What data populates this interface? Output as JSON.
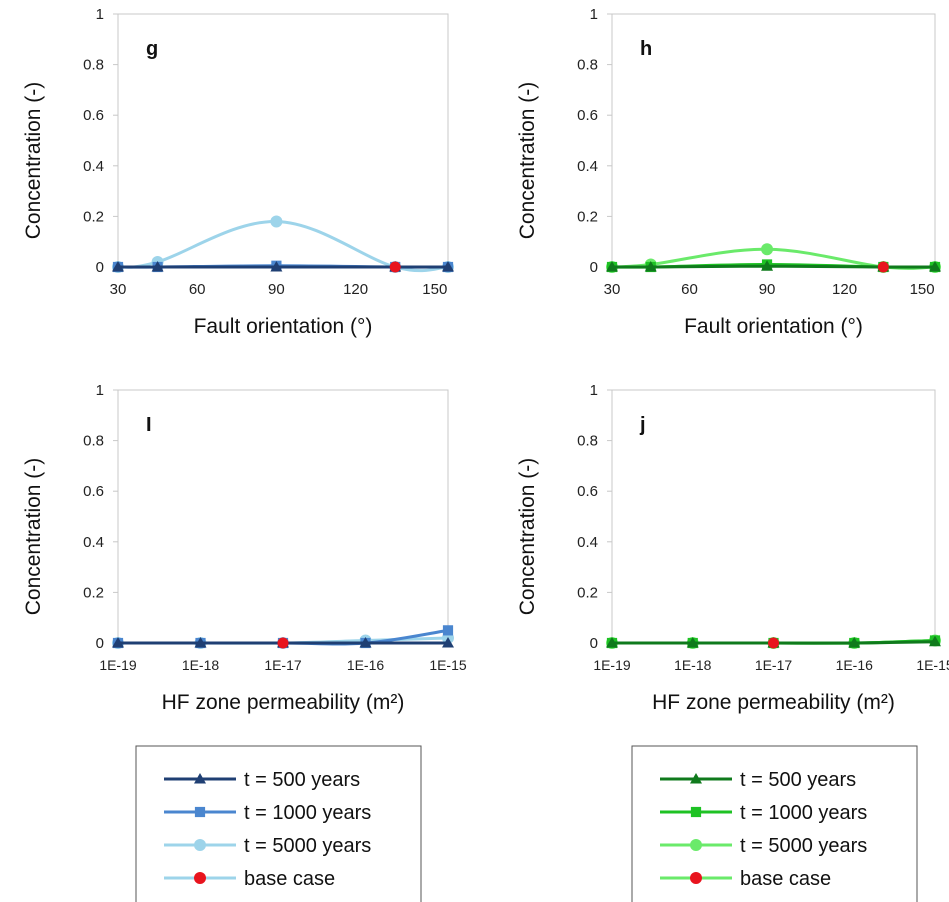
{
  "chart_data": [
    {
      "id": "g",
      "type": "line",
      "panel_label": "g",
      "xlabel": "Fault orientation (°)",
      "ylabel": "Concentration (-)",
      "xlim": [
        30,
        155
      ],
      "ylim": [
        0,
        1
      ],
      "x_ticks": [
        "30",
        "60",
        "90",
        "120",
        "150"
      ],
      "x_tick_values": [
        30,
        60,
        90,
        120,
        150
      ],
      "y_ticks": [
        "0",
        "0.2",
        "0.4",
        "0.6",
        "0.8",
        "1"
      ],
      "y_tick_values": [
        0,
        0.2,
        0.4,
        0.6,
        0.8,
        1
      ],
      "x": [
        30,
        45,
        90,
        135,
        155
      ],
      "series": [
        {
          "name": "t = 500 years",
          "marker": "triangle",
          "color": "#1f3f73",
          "values": [
            0,
            0,
            0,
            0,
            0
          ]
        },
        {
          "name": "t = 1000 years",
          "marker": "square",
          "color": "#4a86cf",
          "values": [
            0,
            0,
            0.005,
            0,
            0
          ]
        },
        {
          "name": "t = 5000 years",
          "marker": "circle",
          "color": "#9dd4ea",
          "values": [
            0,
            0.02,
            0.18,
            0,
            0
          ]
        },
        {
          "name": "base case",
          "marker": "circle",
          "color": "#e8141e",
          "x": [
            135
          ],
          "values": [
            0
          ]
        }
      ],
      "grid": false
    },
    {
      "id": "h",
      "type": "line",
      "panel_label": "h",
      "xlabel": "Fault orientation (°)",
      "ylabel": "Concentration (-)",
      "xlim": [
        30,
        155
      ],
      "ylim": [
        0,
        1
      ],
      "x_ticks": [
        "30",
        "60",
        "90",
        "120",
        "150"
      ],
      "x_tick_values": [
        30,
        60,
        90,
        120,
        150
      ],
      "y_ticks": [
        "0",
        "0.2",
        "0.4",
        "0.6",
        "0.8",
        "1"
      ],
      "y_tick_values": [
        0,
        0.2,
        0.4,
        0.6,
        0.8,
        1
      ],
      "x": [
        30,
        45,
        90,
        135,
        155
      ],
      "series": [
        {
          "name": "t = 500 years",
          "marker": "triangle",
          "color": "#0f7a1c",
          "values": [
            0,
            0,
            0.003,
            0,
            0
          ]
        },
        {
          "name": "t = 1000 years",
          "marker": "square",
          "color": "#1ec224",
          "values": [
            0,
            0,
            0.01,
            0,
            0
          ]
        },
        {
          "name": "t = 5000 years",
          "marker": "circle",
          "color": "#6aea6a",
          "values": [
            0,
            0.01,
            0.07,
            0,
            0
          ]
        },
        {
          "name": "base case",
          "marker": "circle",
          "color": "#e8141e",
          "x": [
            135
          ],
          "values": [
            0
          ]
        }
      ],
      "grid": false
    },
    {
      "id": "i",
      "type": "line",
      "panel_label": "I",
      "xlabel": "HF zone permeability (m²)",
      "ylabel": "Concentration (-)",
      "xlim": [
        0,
        4
      ],
      "ylim": [
        0,
        1
      ],
      "x_ticks": [
        "1E-19",
        "1E-18",
        "1E-17",
        "1E-16",
        "1E-15"
      ],
      "x_tick_values": [
        0,
        1,
        2,
        3,
        4
      ],
      "y_ticks": [
        "0",
        "0.2",
        "0.4",
        "0.6",
        "0.8",
        "1"
      ],
      "y_tick_values": [
        0,
        0.2,
        0.4,
        0.6,
        0.8,
        1
      ],
      "x": [
        0,
        1,
        2,
        3,
        4
      ],
      "series": [
        {
          "name": "t = 500 years",
          "marker": "triangle",
          "color": "#1f3f73",
          "values": [
            0,
            0,
            0,
            0,
            0
          ]
        },
        {
          "name": "t = 1000 years",
          "marker": "square",
          "color": "#4a86cf",
          "values": [
            0,
            0,
            0,
            0,
            0.05
          ]
        },
        {
          "name": "t = 5000 years",
          "marker": "circle",
          "color": "#9dd4ea",
          "values": [
            0,
            0,
            0,
            0.01,
            0.02
          ]
        },
        {
          "name": "base case",
          "marker": "circle",
          "color": "#e8141e",
          "x": [
            2
          ],
          "values": [
            0
          ]
        }
      ],
      "grid": false
    },
    {
      "id": "j",
      "type": "line",
      "panel_label": "j",
      "xlabel": "HF zone permeability (m²)",
      "ylabel": "Concentration (-)",
      "xlim": [
        0,
        4
      ],
      "ylim": [
        0,
        1
      ],
      "x_ticks": [
        "1E-19",
        "1E-18",
        "1E-17",
        "1E-16",
        "1E-15"
      ],
      "x_tick_values": [
        0,
        1,
        2,
        3,
        4
      ],
      "y_ticks": [
        "0",
        "0.2",
        "0.4",
        "0.6",
        "0.8",
        "1"
      ],
      "y_tick_values": [
        0,
        0.2,
        0.4,
        0.6,
        0.8,
        1
      ],
      "x": [
        0,
        1,
        2,
        3,
        4
      ],
      "series": [
        {
          "name": "t = 500 years",
          "marker": "triangle",
          "color": "#0f7a1c",
          "values": [
            0,
            0,
            0,
            0,
            0.005
          ]
        },
        {
          "name": "t = 1000 years",
          "marker": "square",
          "color": "#1ec224",
          "values": [
            0,
            0,
            0,
            0,
            0.01
          ]
        },
        {
          "name": "t = 5000 years",
          "marker": "circle",
          "color": "#6aea6a",
          "values": [
            0,
            0,
            0,
            0,
            0.01
          ]
        },
        {
          "name": "base case",
          "marker": "circle",
          "color": "#e8141e",
          "x": [
            2
          ],
          "values": [
            0
          ]
        }
      ],
      "grid": false
    }
  ],
  "legends": [
    {
      "id": "legend-blue",
      "entries": [
        {
          "label": "t = 500 years",
          "marker": "triangle",
          "line_color": "#1f3f73",
          "marker_color": "#1f3f73"
        },
        {
          "label": "t = 1000 years",
          "marker": "square",
          "line_color": "#4a86cf",
          "marker_color": "#4a86cf"
        },
        {
          "label": "t = 5000 years",
          "marker": "circle",
          "line_color": "#9dd4ea",
          "marker_color": "#9dd4ea"
        },
        {
          "label": "base case",
          "marker": "circle",
          "line_color": "#9dd4ea",
          "marker_color": "#e8141e"
        }
      ]
    },
    {
      "id": "legend-green",
      "entries": [
        {
          "label": "t = 500 years",
          "marker": "triangle",
          "line_color": "#0f7a1c",
          "marker_color": "#0f7a1c"
        },
        {
          "label": "t = 1000 years",
          "marker": "square",
          "line_color": "#1ec224",
          "marker_color": "#1ec224"
        },
        {
          "label": "t = 5000 years",
          "marker": "circle",
          "line_color": "#6aea6a",
          "marker_color": "#6aea6a"
        },
        {
          "label": "base case",
          "marker": "circle",
          "line_color": "#6aea6a",
          "marker_color": "#e8141e"
        }
      ]
    }
  ]
}
